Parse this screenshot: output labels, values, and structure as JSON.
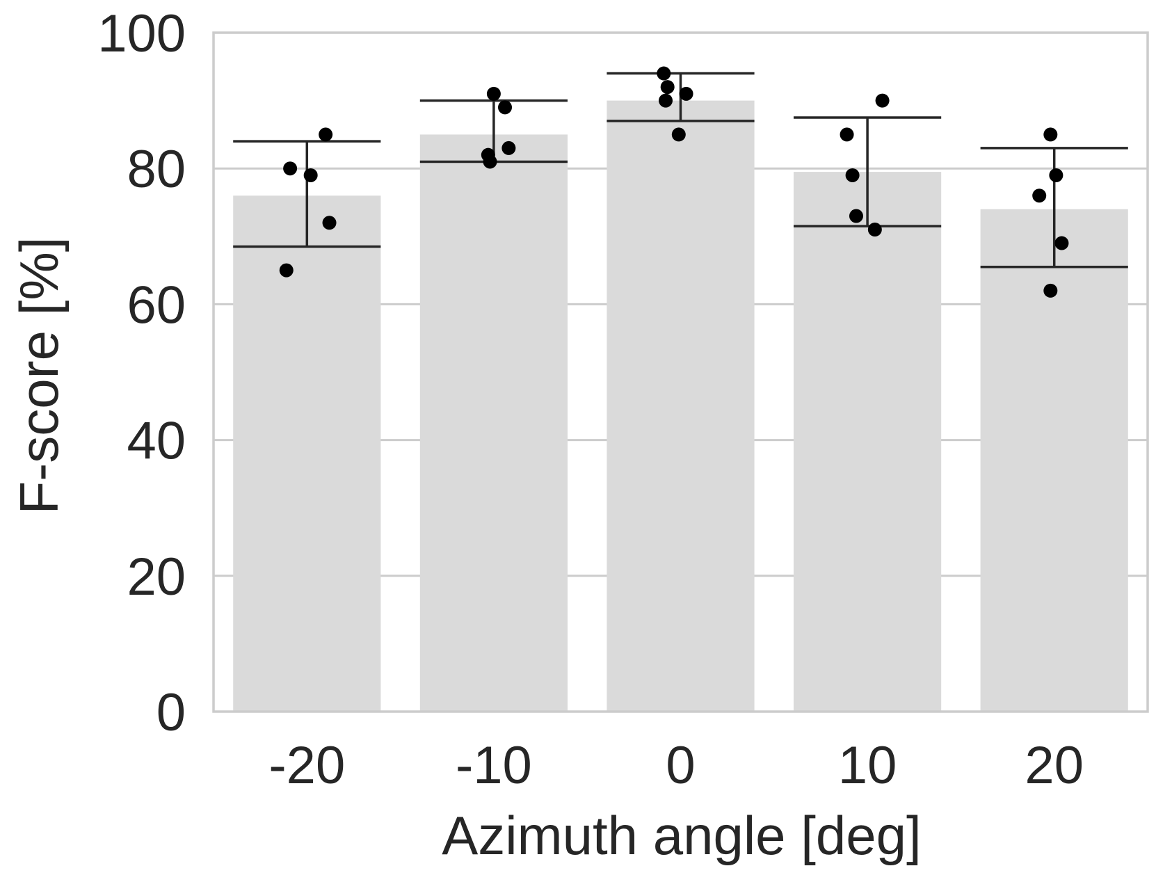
{
  "chart_data": {
    "type": "bar",
    "title": "",
    "xlabel": "Azimuth angle [deg]",
    "ylabel": "F-score [%]",
    "ylim": [
      0,
      100
    ],
    "yticks": [
      0,
      20,
      40,
      60,
      80,
      100
    ],
    "grid": true,
    "categories": [
      "-20",
      "-10",
      "0",
      "10",
      "20"
    ],
    "values": [
      76,
      85,
      90,
      79.5,
      74
    ],
    "error_bars": [
      {
        "low": 68.5,
        "high": 84
      },
      {
        "low": 81,
        "high": 90
      },
      {
        "low": 87,
        "high": 94
      },
      {
        "low": 71.5,
        "high": 87.5
      },
      {
        "low": 65.5,
        "high": 83
      }
    ],
    "points": [
      [
        {
          "offset": 0.1,
          "value": 85
        },
        {
          "offset": -0.09,
          "value": 80
        },
        {
          "offset": 0.02,
          "value": 79
        },
        {
          "offset": 0.12,
          "value": 72
        },
        {
          "offset": -0.11,
          "value": 65
        }
      ],
      [
        {
          "offset": 0.0,
          "value": 91
        },
        {
          "offset": 0.06,
          "value": 89
        },
        {
          "offset": 0.08,
          "value": 83
        },
        {
          "offset": -0.03,
          "value": 82
        },
        {
          "offset": -0.02,
          "value": 81
        }
      ],
      [
        {
          "offset": -0.09,
          "value": 94
        },
        {
          "offset": -0.07,
          "value": 92
        },
        {
          "offset": 0.03,
          "value": 91
        },
        {
          "offset": -0.08,
          "value": 90
        },
        {
          "offset": -0.01,
          "value": 85
        }
      ],
      [
        {
          "offset": 0.08,
          "value": 90
        },
        {
          "offset": -0.11,
          "value": 85
        },
        {
          "offset": -0.08,
          "value": 79
        },
        {
          "offset": -0.06,
          "value": 73
        },
        {
          "offset": 0.04,
          "value": 71
        }
      ],
      [
        {
          "offset": -0.02,
          "value": 85
        },
        {
          "offset": 0.01,
          "value": 79
        },
        {
          "offset": -0.08,
          "value": 76
        },
        {
          "offset": 0.04,
          "value": 69
        },
        {
          "offset": -0.02,
          "value": 62
        }
      ]
    ],
    "colors": {
      "bar": "#dadada",
      "grid": "#cccccc",
      "frame": "#cccccc",
      "errorbar": "#262626",
      "point": "#000000",
      "text": "#262626"
    }
  }
}
